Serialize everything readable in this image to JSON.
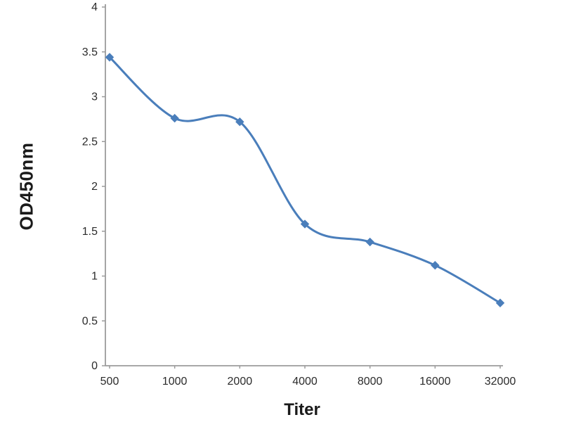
{
  "chart_data": {
    "type": "line",
    "title": "",
    "categories": [
      "500",
      "1000",
      "2000",
      "4000",
      "8000",
      "16000",
      "32000"
    ],
    "series": [
      {
        "name": "OD450nm",
        "values": [
          3.44,
          2.76,
          2.72,
          1.58,
          1.38,
          1.12,
          0.7
        ]
      }
    ],
    "xlabel": "Titer",
    "ylabel": "OD450nm",
    "ylim": [
      0,
      4
    ],
    "ytick_step": 0.5,
    "yticks": [
      "0",
      "0.5",
      "1",
      "1.5",
      "2",
      "2.5",
      "3",
      "3.5",
      "4"
    ],
    "grid": false,
    "legend_position": "none",
    "line_color": "#4a7ebb",
    "marker": "diamond",
    "marker_color": "#4a7ebb",
    "axis_color": "#9b9b9b",
    "smooth": true
  }
}
